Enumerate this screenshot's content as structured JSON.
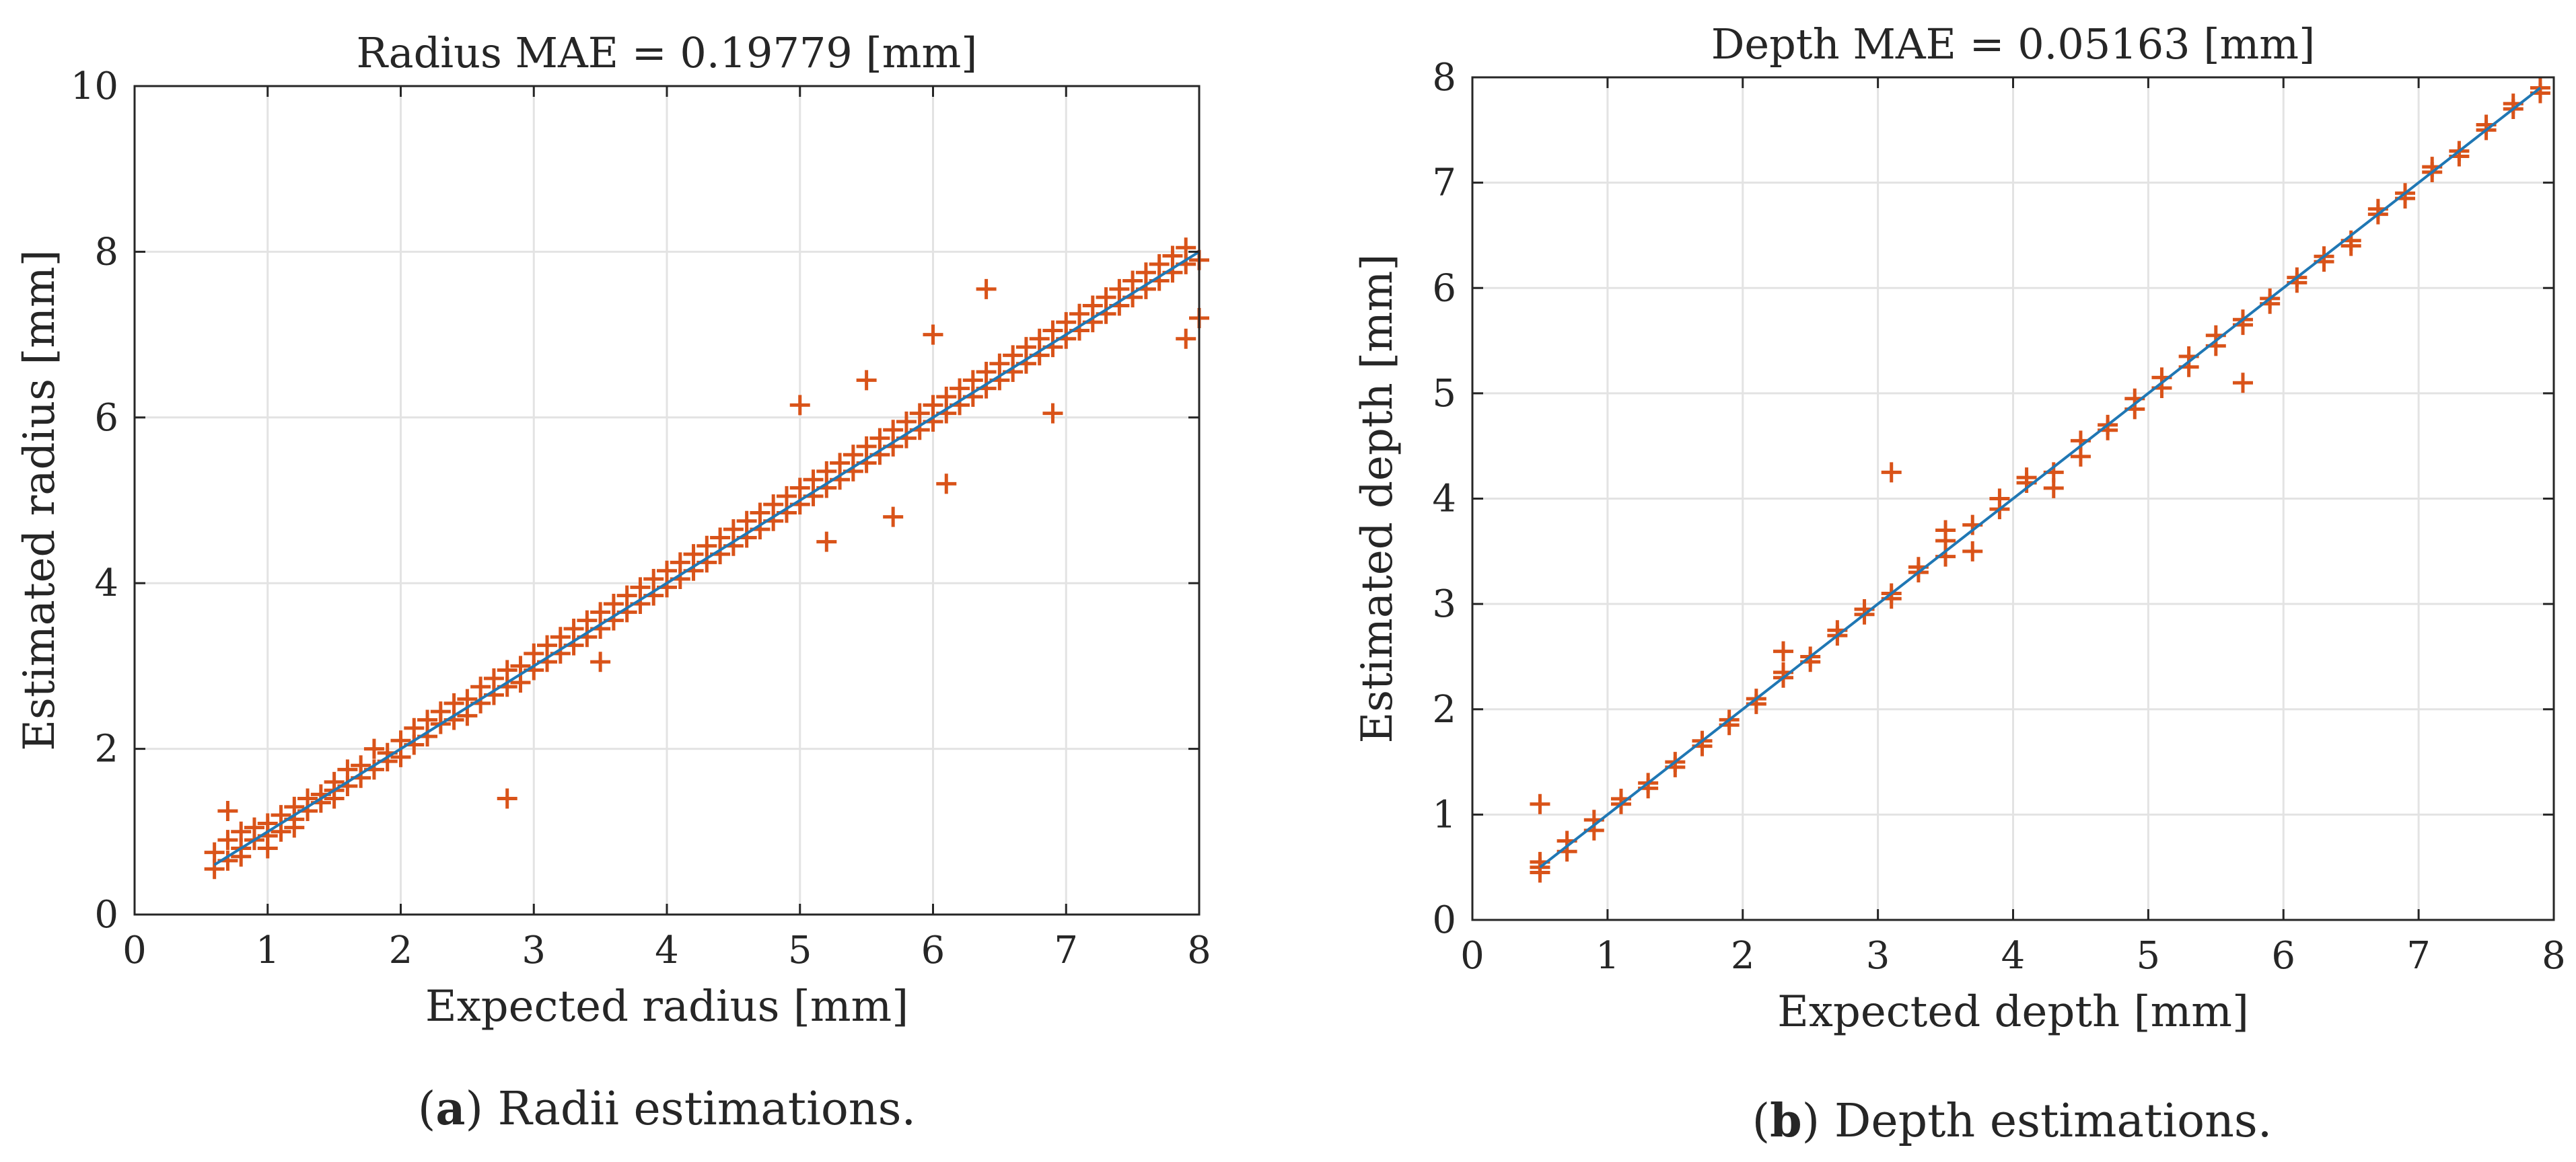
{
  "colors": {
    "marker": "#d95319",
    "fit_line": "#1f77b4",
    "grid": "#e3e3e3",
    "axis": "#262626"
  },
  "chart_data": [
    {
      "type": "scatter",
      "title": "Radius MAE = 0.19779 [mm]",
      "xlabel": "Expected radius [mm]",
      "ylabel": "Estimated radius [mm]",
      "caption_bold": "a",
      "caption_text": " Radii estimations.",
      "xlim": [
        0,
        8
      ],
      "ylim": [
        0,
        10
      ],
      "xticks": [
        0,
        1,
        2,
        3,
        4,
        5,
        6,
        7,
        8
      ],
      "yticks": [
        0,
        2,
        4,
        6,
        8,
        10
      ],
      "grid": true,
      "marker": "+",
      "fit_line": {
        "x": [
          0.6,
          8.0
        ],
        "y": [
          0.6,
          8.0
        ]
      },
      "x": [
        0.6,
        0.6,
        0.7,
        0.7,
        0.8,
        0.8,
        0.8,
        0.9,
        0.9,
        1.0,
        1.0,
        1.0,
        1.1,
        1.1,
        1.2,
        1.2,
        1.2,
        1.3,
        1.3,
        1.4,
        1.4,
        1.5,
        1.5,
        1.5,
        1.6,
        1.6,
        1.7,
        1.7,
        1.8,
        1.8,
        1.9,
        1.9,
        2.0,
        2.0,
        2.1,
        2.1,
        2.2,
        2.2,
        2.3,
        2.3,
        2.4,
        2.4,
        2.5,
        2.5,
        2.6,
        2.6,
        2.7,
        2.7,
        2.8,
        2.8,
        2.9,
        2.9,
        3.0,
        3.0,
        3.1,
        3.1,
        3.2,
        3.2,
        3.3,
        3.3,
        3.4,
        3.4,
        3.5,
        3.5,
        3.6,
        3.6,
        3.7,
        3.7,
        3.8,
        3.8,
        3.9,
        3.9,
        4.0,
        4.0,
        4.1,
        4.1,
        4.2,
        4.2,
        4.3,
        4.3,
        4.4,
        4.4,
        4.5,
        4.5,
        4.6,
        4.6,
        4.7,
        4.7,
        4.8,
        4.8,
        4.9,
        4.9,
        5.0,
        5.0,
        5.1,
        5.1,
        5.2,
        5.2,
        5.3,
        5.3,
        5.4,
        5.4,
        5.5,
        5.5,
        5.6,
        5.6,
        5.7,
        5.7,
        5.8,
        5.8,
        5.9,
        5.9,
        6.0,
        6.0,
        6.1,
        6.1,
        6.2,
        6.2,
        6.3,
        6.3,
        6.4,
        6.4,
        6.5,
        6.5,
        6.6,
        6.6,
        6.7,
        6.7,
        6.8,
        6.8,
        6.9,
        6.9,
        7.0,
        7.0,
        7.1,
        7.1,
        7.2,
        7.2,
        7.3,
        7.3,
        7.4,
        7.4,
        7.5,
        7.5,
        7.6,
        7.6,
        7.7,
        7.7,
        7.8,
        7.8,
        7.9,
        7.9,
        8.0,
        8.0,
        0.7,
        2.8,
        3.5,
        5.0,
        5.2,
        5.5,
        5.7,
        6.0,
        6.1,
        6.4,
        6.9,
        7.9
      ],
      "y": [
        0.55,
        0.75,
        0.65,
        0.9,
        0.8,
        1.0,
        0.7,
        0.9,
        1.05,
        0.8,
        1.1,
        0.95,
        1.2,
        1.0,
        1.15,
        1.3,
        1.05,
        1.25,
        1.4,
        1.35,
        1.45,
        1.4,
        1.6,
        1.5,
        1.55,
        1.75,
        1.65,
        1.8,
        1.75,
        2.0,
        1.85,
        1.95,
        1.9,
        2.1,
        2.05,
        2.25,
        2.15,
        2.35,
        2.3,
        2.45,
        2.35,
        2.55,
        2.4,
        2.6,
        2.55,
        2.75,
        2.65,
        2.85,
        2.75,
        2.95,
        2.8,
        3.0,
        2.95,
        3.15,
        3.05,
        3.25,
        3.15,
        3.35,
        3.25,
        3.45,
        3.35,
        3.55,
        3.45,
        3.65,
        3.55,
        3.75,
        3.65,
        3.85,
        3.75,
        3.95,
        3.85,
        4.05,
        3.95,
        4.15,
        4.05,
        4.25,
        4.15,
        4.35,
        4.25,
        4.45,
        4.35,
        4.55,
        4.45,
        4.65,
        4.55,
        4.75,
        4.65,
        4.85,
        4.75,
        4.95,
        4.85,
        5.05,
        4.95,
        5.15,
        5.05,
        5.25,
        5.15,
        5.35,
        5.25,
        5.45,
        5.35,
        5.55,
        5.45,
        5.65,
        5.55,
        5.75,
        5.65,
        5.85,
        5.75,
        5.95,
        5.85,
        6.05,
        5.95,
        6.15,
        6.05,
        6.25,
        6.15,
        6.35,
        6.25,
        6.45,
        6.35,
        6.55,
        6.45,
        6.65,
        6.55,
        6.75,
        6.65,
        6.85,
        6.75,
        6.95,
        6.85,
        7.05,
        6.95,
        7.15,
        7.05,
        7.25,
        7.15,
        7.35,
        7.25,
        7.45,
        7.35,
        7.55,
        7.45,
        7.65,
        7.55,
        7.75,
        7.65,
        7.85,
        7.75,
        7.95,
        7.85,
        8.05,
        7.2,
        7.9,
        1.25,
        1.4,
        3.05,
        6.15,
        4.5,
        6.45,
        4.8,
        7.0,
        5.2,
        7.55,
        6.05,
        6.95
      ]
    },
    {
      "type": "scatter",
      "title": "Depth MAE = 0.05163 [mm]",
      "xlabel": "Expected depth [mm]",
      "ylabel": "Estimated depth [mm]",
      "caption_bold": "b",
      "caption_text": " Depth estimations.",
      "xlim": [
        0,
        8
      ],
      "ylim": [
        0,
        8
      ],
      "xticks": [
        0,
        1,
        2,
        3,
        4,
        5,
        6,
        7,
        8
      ],
      "yticks": [
        0,
        1,
        2,
        3,
        4,
        5,
        6,
        7,
        8
      ],
      "grid": true,
      "marker": "+",
      "fit_line": {
        "x": [
          0.5,
          7.9
        ],
        "y": [
          0.5,
          7.9
        ]
      },
      "x": [
        0.5,
        0.5,
        0.5,
        0.7,
        0.7,
        0.9,
        0.9,
        1.1,
        1.1,
        1.3,
        1.3,
        1.5,
        1.5,
        1.7,
        1.7,
        1.9,
        1.9,
        2.1,
        2.1,
        2.3,
        2.3,
        2.5,
        2.5,
        2.7,
        2.7,
        2.9,
        2.9,
        3.1,
        3.1,
        3.3,
        3.3,
        3.5,
        3.5,
        3.5,
        3.7,
        3.7,
        3.9,
        3.9,
        4.1,
        4.1,
        4.3,
        4.3,
        4.5,
        4.5,
        4.7,
        4.7,
        4.9,
        4.9,
        5.1,
        5.1,
        5.3,
        5.3,
        5.5,
        5.5,
        5.7,
        5.7,
        5.9,
        5.9,
        6.1,
        6.1,
        6.3,
        6.3,
        6.5,
        6.5,
        6.7,
        6.7,
        6.9,
        6.9,
        7.1,
        7.1,
        7.3,
        7.3,
        7.5,
        7.5,
        7.7,
        7.7,
        7.9,
        7.9,
        0.5,
        3.1,
        5.7,
        2.3
      ],
      "y": [
        0.45,
        0.55,
        0.5,
        0.65,
        0.75,
        0.85,
        0.95,
        1.1,
        1.15,
        1.25,
        1.3,
        1.45,
        1.5,
        1.65,
        1.7,
        1.85,
        1.9,
        2.05,
        2.1,
        2.3,
        2.35,
        2.45,
        2.5,
        2.7,
        2.75,
        2.9,
        2.95,
        3.05,
        3.1,
        3.3,
        3.35,
        3.45,
        3.6,
        3.7,
        3.5,
        3.75,
        3.9,
        4.0,
        4.15,
        4.2,
        4.1,
        4.25,
        4.4,
        4.55,
        4.65,
        4.7,
        4.85,
        4.95,
        5.05,
        5.15,
        5.25,
        5.35,
        5.45,
        5.55,
        5.65,
        5.7,
        5.85,
        5.9,
        6.05,
        6.1,
        6.25,
        6.3,
        6.4,
        6.45,
        6.7,
        6.75,
        6.85,
        6.9,
        7.1,
        7.15,
        7.25,
        7.3,
        7.5,
        7.55,
        7.7,
        7.75,
        7.85,
        7.9,
        1.1,
        4.25,
        5.1,
        2.55
      ]
    }
  ]
}
